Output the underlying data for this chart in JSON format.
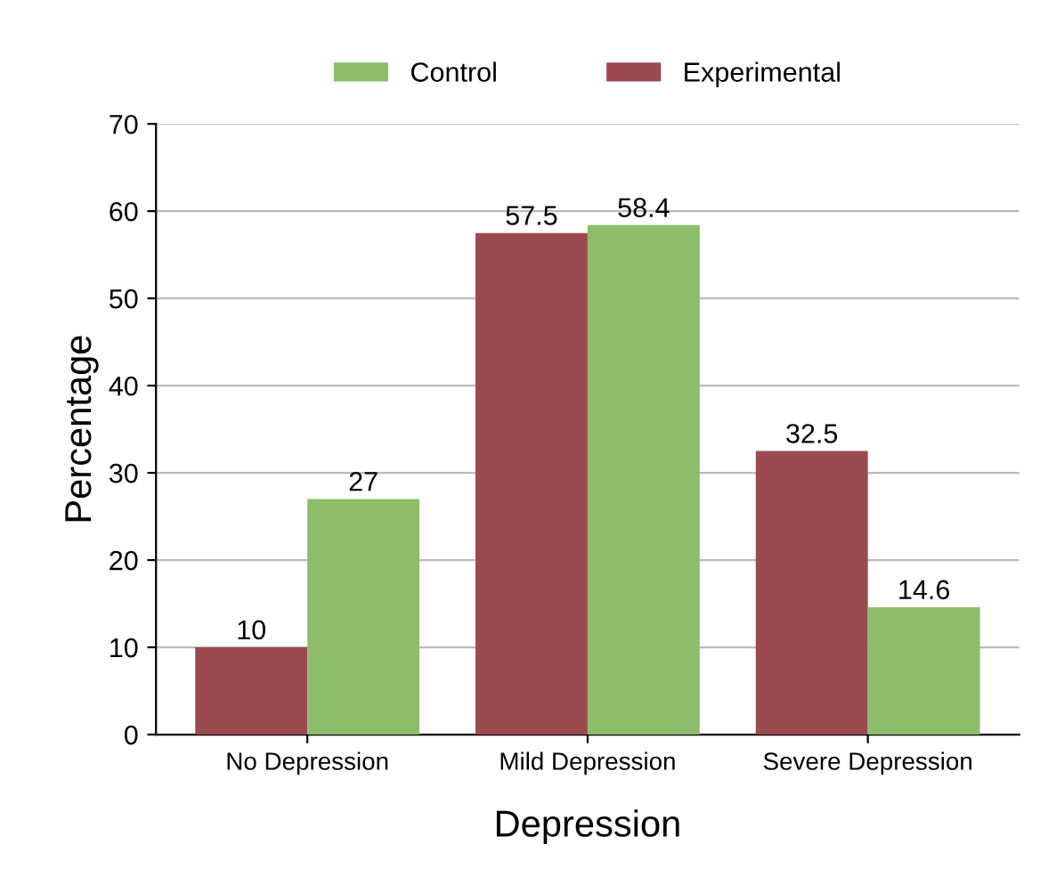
{
  "chart_data": {
    "type": "bar",
    "xlabel": "Depression",
    "ylabel": "Percentage",
    "categories": [
      "No Depression",
      "Mild Depression",
      "Severe Depression"
    ],
    "series": [
      {
        "name": "Experimental",
        "color": "#9b4a50",
        "values": [
          10,
          57.5,
          32.5
        ]
      },
      {
        "name": "Control",
        "color": "#8dbd6b",
        "values": [
          27,
          58.4,
          14.6
        ]
      }
    ],
    "ylim": [
      0,
      70
    ],
    "yticks": [
      0,
      10,
      20,
      30,
      40,
      50,
      60,
      70
    ],
    "grid": "y",
    "legend": "top",
    "data_labels": true
  }
}
